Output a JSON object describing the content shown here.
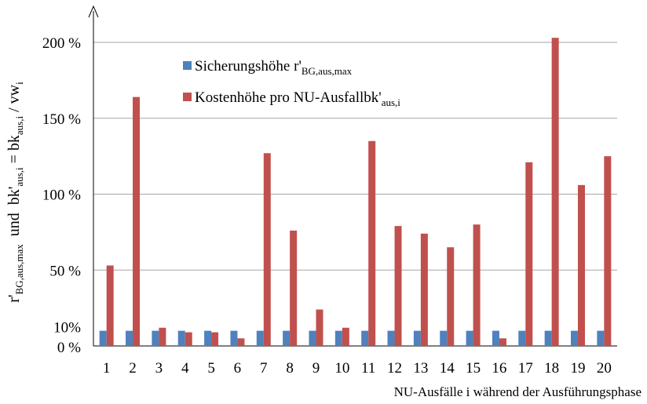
{
  "chart_data": {
    "type": "bar",
    "title": "",
    "xlabel": "NU-Ausfälle i während der Ausführungsphase",
    "ylabel": {
      "prefix": "r'",
      "prefix_sub": "BG,aus,max",
      "middle": "  und  bk'",
      "middle_sub": "aus,i",
      "eq": " = bk",
      "eq_sub": "aus,i",
      "tail": " / vw",
      "tail_sub": "i"
    },
    "categories": [
      "1",
      "2",
      "3",
      "4",
      "5",
      "6",
      "7",
      "8",
      "9",
      "10",
      "11",
      "12",
      "13",
      "14",
      "15",
      "16",
      "17",
      "18",
      "19",
      "20"
    ],
    "ylim": [
      0,
      225
    ],
    "y_ticks": [
      {
        "value": 0,
        "label": "0 %"
      },
      {
        "value": 10,
        "label": "10%"
      },
      {
        "value": 50,
        "label": "50 %"
      },
      {
        "value": 100,
        "label": "100 %"
      },
      {
        "value": 150,
        "label": "150 %"
      },
      {
        "value": 200,
        "label": "200 %"
      }
    ],
    "gridlines": [
      50,
      100,
      150,
      200
    ],
    "grid": true,
    "legend_position": "top-center",
    "series": [
      {
        "name": "Sicherungshöhe r'",
        "name_sub": "BG,aus,max",
        "color": "#4f81bd",
        "values": [
          10,
          10,
          10,
          10,
          10,
          10,
          10,
          10,
          10,
          10,
          10,
          10,
          10,
          10,
          10,
          10,
          10,
          10,
          10,
          10
        ]
      },
      {
        "name": "Kostenhöhe pro NU-Ausfallbk'",
        "name_sub": "aus,i",
        "color": "#c0504d",
        "values": [
          53,
          164,
          12,
          9,
          9,
          5,
          127,
          76,
          24,
          12,
          135,
          79,
          74,
          65,
          80,
          5,
          121,
          203,
          106,
          125
        ]
      }
    ]
  }
}
